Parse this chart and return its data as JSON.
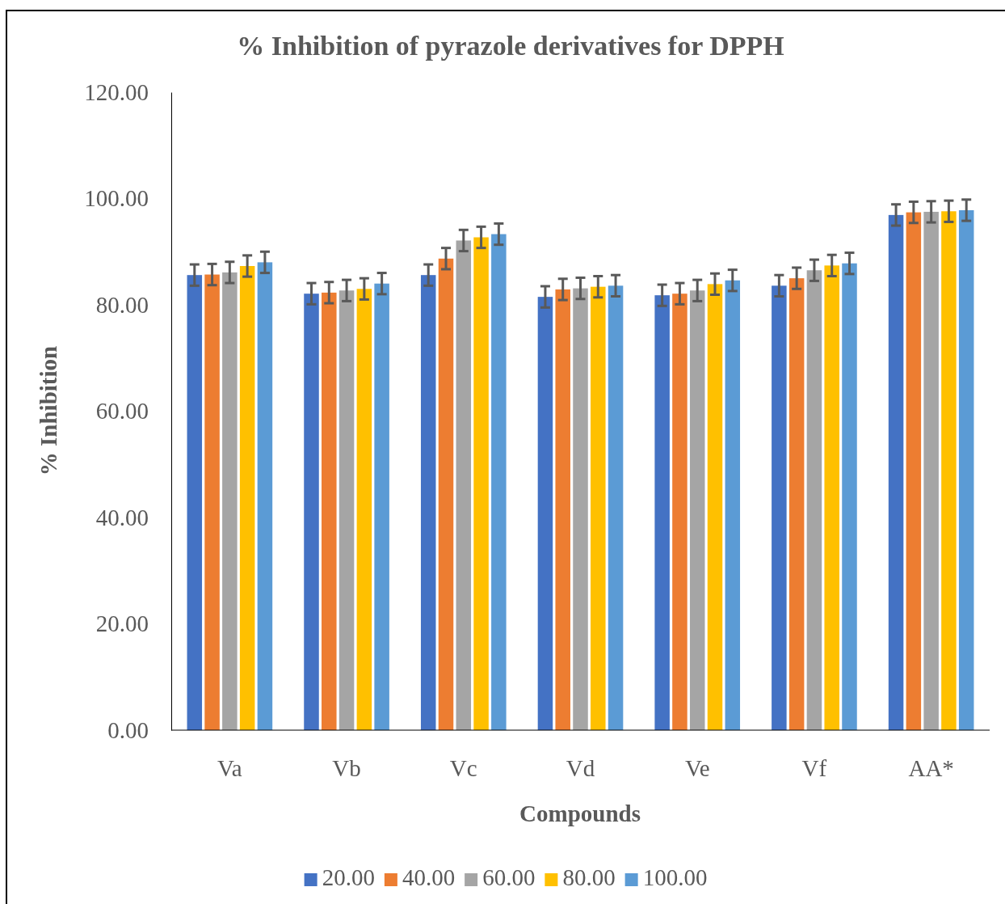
{
  "chart_data": {
    "type": "bar",
    "title": "% Inhibition of pyrazole derivatives for DPPH",
    "xlabel": "Compounds",
    "ylabel": "% Inhibition",
    "categories": [
      "Va",
      "Vb",
      "Vc",
      "Vd",
      "Ve",
      "Vf",
      "AA*"
    ],
    "series": [
      {
        "name": "20.00",
        "color": "#4472c4",
        "values": [
          85.6,
          82.1,
          85.6,
          81.5,
          81.8,
          83.6,
          96.9
        ],
        "errors": [
          2,
          2,
          2,
          2,
          2,
          2,
          2
        ]
      },
      {
        "name": "40.00",
        "color": "#ed7d31",
        "values": [
          85.7,
          82.3,
          88.7,
          82.9,
          82.1,
          85.0,
          97.4
        ],
        "errors": [
          2,
          2,
          2,
          2,
          2,
          2,
          2
        ]
      },
      {
        "name": "60.00",
        "color": "#a5a5a5",
        "values": [
          86.1,
          82.7,
          92.1,
          83.1,
          82.7,
          86.5,
          97.5
        ],
        "errors": [
          2,
          2,
          2,
          2,
          2,
          2,
          2
        ]
      },
      {
        "name": "80.00",
        "color": "#ffc000",
        "values": [
          87.3,
          83.0,
          92.7,
          83.4,
          83.9,
          87.4,
          97.6
        ],
        "errors": [
          2,
          2,
          2,
          2,
          2,
          2,
          2
        ]
      },
      {
        "name": "100.00",
        "color": "#5b9bd5",
        "values": [
          88.0,
          84.0,
          93.3,
          83.6,
          84.6,
          87.8,
          97.8
        ],
        "errors": [
          2,
          2,
          2,
          2,
          2,
          2,
          2
        ]
      }
    ],
    "ylim": [
      0,
      120
    ],
    "yticks": [
      {
        "value": 0,
        "label": "0.00"
      },
      {
        "value": 20,
        "label": "20.00"
      },
      {
        "value": 40,
        "label": "40.00"
      },
      {
        "value": 60,
        "label": "60.00"
      },
      {
        "value": 80,
        "label": "80.00"
      },
      {
        "value": 100,
        "label": "100.00"
      },
      {
        "value": 120,
        "label": "120.00"
      }
    ],
    "grid": false,
    "legend": "bottom"
  }
}
